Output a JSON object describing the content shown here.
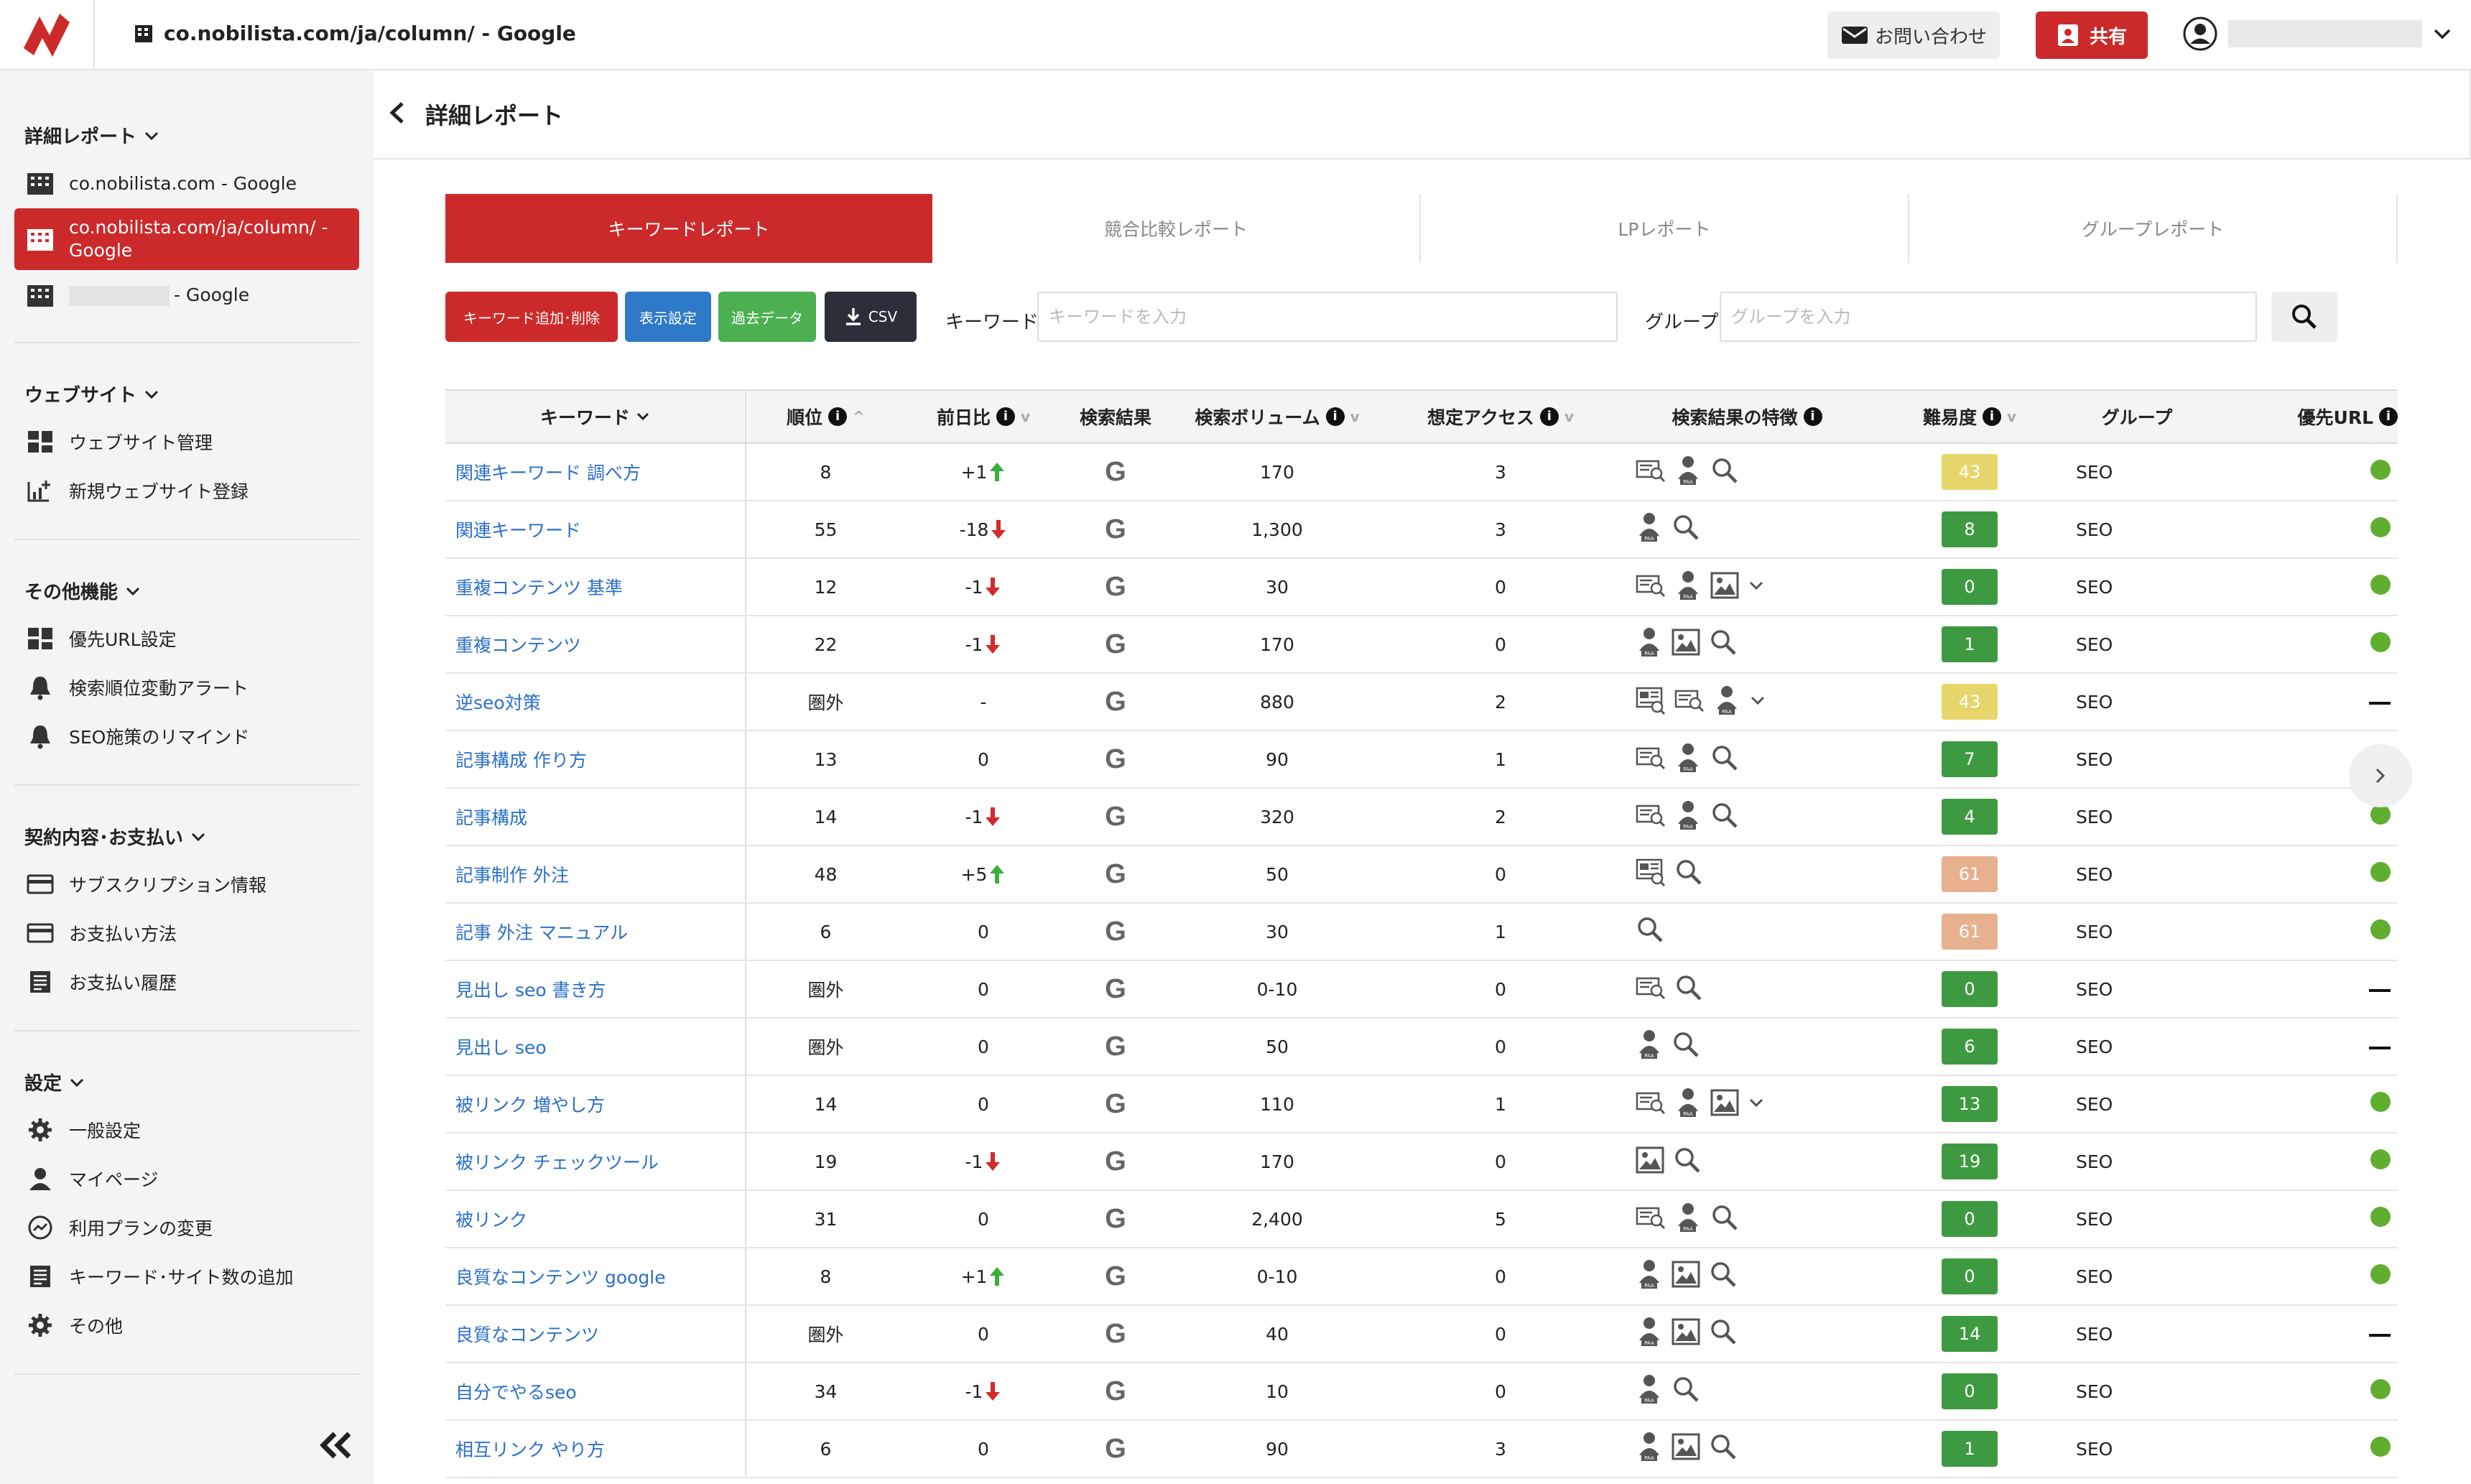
{
  "header": {
    "site_title": "co.nobilista.com/ja/column/ - Google",
    "contact_label": "お問い合わせ",
    "share_label": "共有"
  },
  "sidebar": {
    "section_reports": "詳細レポート",
    "reports": [
      "co.nobilista.com - Google",
      "co.nobilista.com/ja/column/ - Google",
      "- Google"
    ],
    "section_website": "ウェブサイト",
    "website": [
      "ウェブサイト管理",
      "新規ウェブサイト登録"
    ],
    "section_other": "その他機能",
    "other": [
      "優先URL設定",
      "検索順位変動アラート",
      "SEO施策のリマインド"
    ],
    "section_billing": "契約内容･お支払い",
    "billing": [
      "サブスクリプション情報",
      "お支払い方法",
      "お支払い履歴"
    ],
    "section_settings": "設定",
    "settings": [
      "一般設定",
      "マイページ",
      "利用プランの変更",
      "キーワード･サイト数の追加",
      "その他"
    ]
  },
  "page": {
    "title": "詳細レポート"
  },
  "tabs": [
    "キーワードレポート",
    "競合比較レポート",
    "LPレポート",
    "グループレポート"
  ],
  "toolbar": {
    "btn_keyword": "キーワード追加･削除",
    "btn_display": "表示設定",
    "btn_past": "過去データ",
    "btn_csv": "CSV",
    "keyword_label": "キーワード",
    "keyword_placeholder": "キーワードを入力",
    "group_label": "グループ",
    "group_placeholder": "グループを入力"
  },
  "colors": {
    "brand_red": "#cc2a2a",
    "btn_blue": "#2f79c9",
    "btn_green": "#4caf50",
    "btn_dark": "#2b2f3a",
    "up": "#3cae3c",
    "down": "#d42a2a",
    "badge_green": "#3e9a40",
    "badge_yellow": "#e6d56a",
    "badge_peach": "#e8b08e",
    "dot_green": "#5fae2f"
  },
  "table": {
    "headers": [
      "キーワード",
      "順位",
      "前日比",
      "検索結果",
      "検索ボリューム",
      "想定アクセス",
      "検索結果の特徴",
      "難易度",
      "グループ",
      "優先URL"
    ],
    "rows": [
      {
        "kw": "関連キーワード 調べ方",
        "rank": "8",
        "chg": "+1",
        "dir": "up",
        "vol": "170",
        "acc": "3",
        "feat": [
          "featured-snippet-icon",
          "paa-icon",
          "search-icon"
        ],
        "more": false,
        "diff": "43",
        "dc": "yellow",
        "grp": "SEO",
        "url": "dot"
      },
      {
        "kw": "関連キーワード",
        "rank": "55",
        "chg": "-18",
        "dir": "down",
        "vol": "1,300",
        "acc": "3",
        "feat": [
          "paa-icon",
          "search-icon"
        ],
        "more": false,
        "diff": "8",
        "dc": "green",
        "grp": "SEO",
        "url": "dot"
      },
      {
        "kw": "重複コンテンツ 基準",
        "rank": "12",
        "chg": "-1",
        "dir": "down",
        "vol": "30",
        "acc": "0",
        "feat": [
          "featured-snippet-icon",
          "paa-icon",
          "image-icon"
        ],
        "more": true,
        "diff": "0",
        "dc": "green",
        "grp": "SEO",
        "url": "dot"
      },
      {
        "kw": "重複コンテンツ",
        "rank": "22",
        "chg": "-1",
        "dir": "down",
        "vol": "170",
        "acc": "0",
        "feat": [
          "paa-icon",
          "image-icon",
          "search-icon"
        ],
        "more": false,
        "diff": "1",
        "dc": "green",
        "grp": "SEO",
        "url": "dot"
      },
      {
        "kw": "逆seo対策",
        "rank": "圏外",
        "chg": "-",
        "dir": "none",
        "vol": "880",
        "acc": "2",
        "feat": [
          "top-stories-icon",
          "featured-snippet-icon",
          "paa-icon"
        ],
        "more": true,
        "diff": "43",
        "dc": "yellow",
        "grp": "SEO",
        "url": "dash"
      },
      {
        "kw": "記事構成 作り方",
        "rank": "13",
        "chg": "0",
        "dir": "none",
        "vol": "90",
        "acc": "1",
        "feat": [
          "featured-snippet-icon",
          "paa-icon",
          "search-icon"
        ],
        "more": false,
        "diff": "7",
        "dc": "green",
        "grp": "SEO",
        "url": "dot"
      },
      {
        "kw": "記事構成",
        "rank": "14",
        "chg": "-1",
        "dir": "down",
        "vol": "320",
        "acc": "2",
        "feat": [
          "featured-snippet-icon",
          "paa-icon",
          "search-icon"
        ],
        "more": false,
        "diff": "4",
        "dc": "green",
        "grp": "SEO",
        "url": "dot"
      },
      {
        "kw": "記事制作 外注",
        "rank": "48",
        "chg": "+5",
        "dir": "up",
        "vol": "50",
        "acc": "0",
        "feat": [
          "top-stories-icon",
          "search-icon"
        ],
        "more": false,
        "diff": "61",
        "dc": "peach",
        "grp": "SEO",
        "url": "dot"
      },
      {
        "kw": "記事 外注 マニュアル",
        "rank": "6",
        "chg": "0",
        "dir": "none",
        "vol": "30",
        "acc": "1",
        "feat": [
          "search-icon"
        ],
        "more": false,
        "diff": "61",
        "dc": "peach",
        "grp": "SEO",
        "url": "dot"
      },
      {
        "kw": "見出し seo 書き方",
        "rank": "圏外",
        "chg": "0",
        "dir": "none",
        "vol": "0-10",
        "acc": "0",
        "feat": [
          "featured-snippet-icon",
          "search-icon"
        ],
        "more": false,
        "diff": "0",
        "dc": "green",
        "grp": "SEO",
        "url": "dash"
      },
      {
        "kw": "見出し seo",
        "rank": "圏外",
        "chg": "0",
        "dir": "none",
        "vol": "50",
        "acc": "0",
        "feat": [
          "paa-icon",
          "search-icon"
        ],
        "more": false,
        "diff": "6",
        "dc": "green",
        "grp": "SEO",
        "url": "dash"
      },
      {
        "kw": "被リンク 増やし方",
        "rank": "14",
        "chg": "0",
        "dir": "none",
        "vol": "110",
        "acc": "1",
        "feat": [
          "featured-snippet-icon",
          "paa-icon",
          "image-icon"
        ],
        "more": true,
        "diff": "13",
        "dc": "green",
        "grp": "SEO",
        "url": "dot"
      },
      {
        "kw": "被リンク チェックツール",
        "rank": "19",
        "chg": "-1",
        "dir": "down",
        "vol": "170",
        "acc": "0",
        "feat": [
          "image-icon",
          "search-icon"
        ],
        "more": false,
        "diff": "19",
        "dc": "green",
        "grp": "SEO",
        "url": "dot"
      },
      {
        "kw": "被リンク",
        "rank": "31",
        "chg": "0",
        "dir": "none",
        "vol": "2,400",
        "acc": "5",
        "feat": [
          "featured-snippet-icon",
          "paa-icon",
          "search-icon"
        ],
        "more": false,
        "diff": "0",
        "dc": "green",
        "grp": "SEO",
        "url": "dot"
      },
      {
        "kw": "良質なコンテンツ google",
        "rank": "8",
        "chg": "+1",
        "dir": "up",
        "vol": "0-10",
        "acc": "0",
        "feat": [
          "paa-icon",
          "image-icon",
          "search-icon"
        ],
        "more": false,
        "diff": "0",
        "dc": "green",
        "grp": "SEO",
        "url": "dot"
      },
      {
        "kw": "良質なコンテンツ",
        "rank": "圏外",
        "chg": "0",
        "dir": "none",
        "vol": "40",
        "acc": "0",
        "feat": [
          "paa-icon",
          "image-icon",
          "search-icon"
        ],
        "more": false,
        "diff": "14",
        "dc": "green",
        "grp": "SEO",
        "url": "dash"
      },
      {
        "kw": "自分でやるseo",
        "rank": "34",
        "chg": "-1",
        "dir": "down",
        "vol": "10",
        "acc": "0",
        "feat": [
          "paa-icon",
          "search-icon"
        ],
        "more": false,
        "diff": "0",
        "dc": "green",
        "grp": "SEO",
        "url": "dot"
      },
      {
        "kw": "相互リンク やり方",
        "rank": "6",
        "chg": "0",
        "dir": "none",
        "vol": "90",
        "acc": "3",
        "feat": [
          "paa-icon",
          "image-icon",
          "search-icon"
        ],
        "more": false,
        "diff": "1",
        "dc": "green",
        "grp": "SEO",
        "url": "dot"
      }
    ]
  }
}
